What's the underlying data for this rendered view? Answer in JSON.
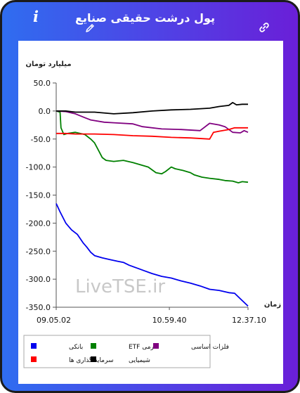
{
  "header": {
    "title": "پول درشت حقیقی صنایع",
    "info_icon": "info-icon",
    "edit_icon": "pencil-icon",
    "link_icon": "link-icon"
  },
  "colors": {
    "header_gradient_start": "#2f6df0",
    "header_gradient_end": "#6a1fd8",
    "banki": "#0000ee",
    "etf": "#008000",
    "felezat": "#800080",
    "sarmaye": "#ff0000",
    "shimiyaei": "#000000"
  },
  "watermark": "LiveTSE.ir",
  "chart_data": {
    "type": "line",
    "ylabel": "میلیارد تومان",
    "xlabel": "زمان",
    "ylim": [
      -350,
      50
    ],
    "yticks": [
      50.0,
      0.0,
      -50.0,
      -100.0,
      -150.0,
      -200.0,
      -250.0,
      -300.0,
      -350.0
    ],
    "ytick_labels": [
      "50.0",
      "0.0",
      "-50.0",
      "-100.0",
      "-150.0",
      "-200.0",
      "-250.0",
      "-300.0",
      "-350.0"
    ],
    "xticks": [
      "09.05.02",
      "10.59.40",
      "12.37.10"
    ],
    "xtick_positions": [
      0,
      0.59,
      1
    ],
    "grid": false,
    "legend_position": "bottom",
    "series": [
      {
        "name": "بانکی",
        "color_key": "banki",
        "points": [
          [
            0,
            -165
          ],
          [
            0.02,
            -180
          ],
          [
            0.05,
            -200
          ],
          [
            0.08,
            -212
          ],
          [
            0.11,
            -220
          ],
          [
            0.14,
            -235
          ],
          [
            0.16,
            -243
          ],
          [
            0.18,
            -252
          ],
          [
            0.2,
            -258
          ],
          [
            0.24,
            -262
          ],
          [
            0.28,
            -265
          ],
          [
            0.32,
            -268
          ],
          [
            0.35,
            -270
          ],
          [
            0.38,
            -275
          ],
          [
            0.42,
            -280
          ],
          [
            0.46,
            -285
          ],
          [
            0.5,
            -290
          ],
          [
            0.55,
            -295
          ],
          [
            0.6,
            -298
          ],
          [
            0.65,
            -303
          ],
          [
            0.7,
            -307
          ],
          [
            0.75,
            -312
          ],
          [
            0.8,
            -318
          ],
          [
            0.85,
            -320
          ],
          [
            0.9,
            -324
          ],
          [
            0.93,
            -325
          ],
          [
            0.96,
            -335
          ],
          [
            1,
            -348
          ]
        ]
      },
      {
        "name": "اهرمی ETF",
        "color_key": "etf",
        "points": [
          [
            0,
            0
          ],
          [
            0.02,
            -2
          ],
          [
            0.025,
            -30
          ],
          [
            0.04,
            -42
          ],
          [
            0.06,
            -40
          ],
          [
            0.1,
            -38
          ],
          [
            0.15,
            -42
          ],
          [
            0.18,
            -50
          ],
          [
            0.2,
            -57
          ],
          [
            0.22,
            -70
          ],
          [
            0.24,
            -83
          ],
          [
            0.26,
            -88
          ],
          [
            0.3,
            -90
          ],
          [
            0.35,
            -88
          ],
          [
            0.4,
            -92
          ],
          [
            0.45,
            -97
          ],
          [
            0.48,
            -100
          ],
          [
            0.5,
            -105
          ],
          [
            0.52,
            -110
          ],
          [
            0.55,
            -112
          ],
          [
            0.57,
            -108
          ],
          [
            0.6,
            -100
          ],
          [
            0.62,
            -103
          ],
          [
            0.66,
            -106
          ],
          [
            0.7,
            -110
          ],
          [
            0.72,
            -114
          ],
          [
            0.76,
            -118
          ],
          [
            0.8,
            -120
          ],
          [
            0.85,
            -122
          ],
          [
            0.88,
            -124
          ],
          [
            0.92,
            -125
          ],
          [
            0.95,
            -128
          ],
          [
            0.97,
            -126
          ],
          [
            1,
            -127
          ]
        ]
      },
      {
        "name": "فلزات اساسی",
        "color_key": "felezat",
        "points": [
          [
            0,
            0
          ],
          [
            0.05,
            -1
          ],
          [
            0.1,
            -5
          ],
          [
            0.15,
            -12
          ],
          [
            0.18,
            -16
          ],
          [
            0.25,
            -20
          ],
          [
            0.3,
            -21
          ],
          [
            0.4,
            -23
          ],
          [
            0.45,
            -28
          ],
          [
            0.55,
            -32
          ],
          [
            0.65,
            -33
          ],
          [
            0.75,
            -35
          ],
          [
            0.8,
            -22
          ],
          [
            0.85,
            -25
          ],
          [
            0.88,
            -28
          ],
          [
            0.92,
            -38
          ],
          [
            0.96,
            -39
          ],
          [
            0.98,
            -35
          ],
          [
            1,
            -38
          ]
        ]
      },
      {
        "name": "سرمایه گذاری ها",
        "color_key": "sarmaye",
        "points": [
          [
            0,
            -40
          ],
          [
            0.05,
            -40
          ],
          [
            0.1,
            -41
          ],
          [
            0.2,
            -41
          ],
          [
            0.3,
            -42
          ],
          [
            0.4,
            -44
          ],
          [
            0.5,
            -45
          ],
          [
            0.6,
            -47
          ],
          [
            0.7,
            -48
          ],
          [
            0.8,
            -50
          ],
          [
            0.82,
            -38
          ],
          [
            0.85,
            -36
          ],
          [
            0.9,
            -33
          ],
          [
            0.93,
            -30
          ],
          [
            1,
            -30
          ]
        ]
      },
      {
        "name": "شیمیایی",
        "color_key": "shimiyaei",
        "points": [
          [
            0,
            0
          ],
          [
            0.05,
            0
          ],
          [
            0.1,
            -2
          ],
          [
            0.2,
            -2
          ],
          [
            0.3,
            -5
          ],
          [
            0.4,
            -3
          ],
          [
            0.5,
            0
          ],
          [
            0.6,
            2
          ],
          [
            0.7,
            3
          ],
          [
            0.8,
            5
          ],
          [
            0.85,
            8
          ],
          [
            0.9,
            10
          ],
          [
            0.92,
            15
          ],
          [
            0.94,
            11
          ],
          [
            0.97,
            12
          ],
          [
            1,
            12
          ]
        ]
      }
    ]
  }
}
